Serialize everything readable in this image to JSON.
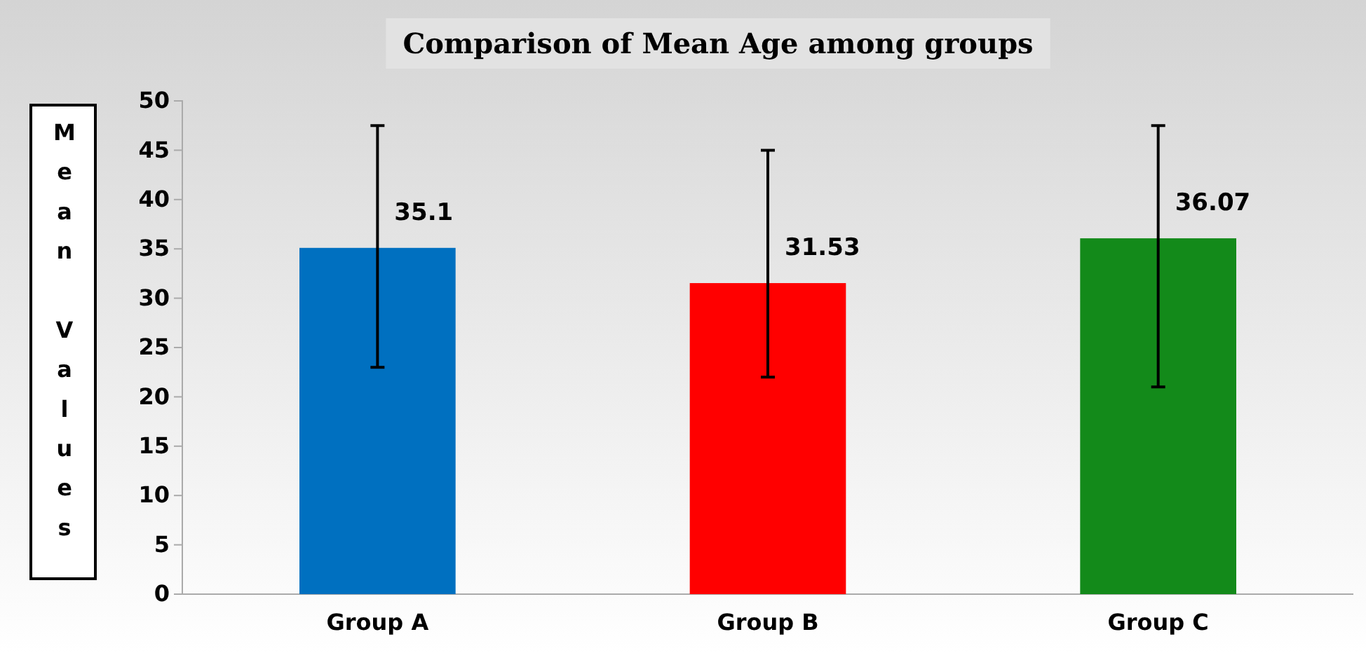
{
  "chart_data": {
    "type": "bar",
    "title": "Comparison of Mean Age among groups",
    "ylabel": "Mean Values",
    "categories": [
      "Group A",
      "Group B",
      "Group C"
    ],
    "values": [
      35.1,
      31.53,
      36.07
    ],
    "colors": [
      "#0070c0",
      "#ff0000",
      "#138a1a"
    ],
    "errors": [
      [
        23,
        47.5
      ],
      [
        22,
        45
      ],
      [
        21,
        47.5
      ]
    ],
    "data_labels": true,
    "ylim": [
      0,
      50
    ],
    "yticks": [
      0,
      5,
      10,
      15,
      20,
      25,
      30,
      35,
      40,
      45,
      50
    ],
    "grid": false
  }
}
